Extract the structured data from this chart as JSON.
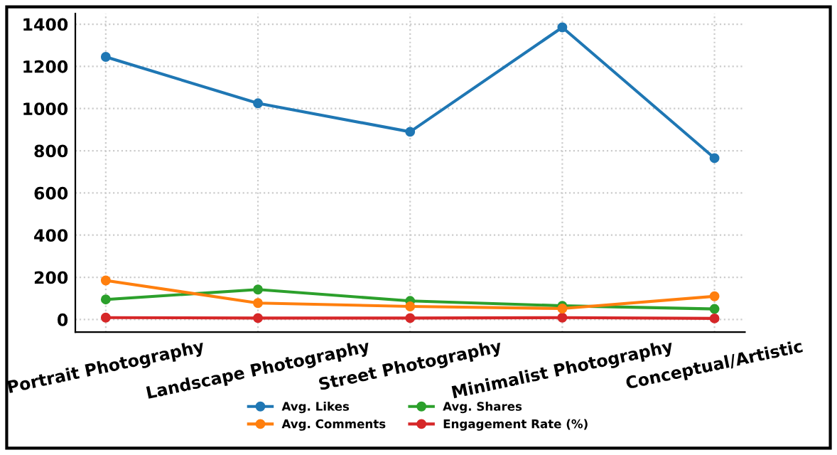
{
  "chart_data": {
    "type": "line",
    "categories": [
      "Portrait Photography",
      "Landscape Photography",
      "Street Photography",
      "Minimalist Photography",
      "Conceptual/Artistic"
    ],
    "series": [
      {
        "name": "Avg. Likes",
        "color": "#1f77b4",
        "values": [
          1245,
          1025,
          890,
          1385,
          765
        ]
      },
      {
        "name": "Avg. Comments",
        "color": "#ff7f0e",
        "values": [
          185,
          78,
          62,
          52,
          110
        ]
      },
      {
        "name": "Avg. Shares",
        "color": "#2ca02c",
        "values": [
          95,
          142,
          88,
          65,
          50
        ]
      },
      {
        "name": "Engagement Rate (%)",
        "color": "#d62728",
        "values": [
          9,
          7,
          7,
          9,
          5
        ]
      }
    ],
    "ylim": [
      -60,
      1450
    ],
    "yticks": [
      0,
      200,
      400,
      600,
      800,
      1000,
      1200,
      1400
    ],
    "grid": true,
    "legend": "bottom",
    "marker": "circle",
    "line_style": "solid"
  }
}
